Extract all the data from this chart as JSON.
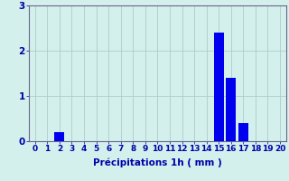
{
  "categories": [
    0,
    1,
    2,
    3,
    4,
    5,
    6,
    7,
    8,
    9,
    10,
    11,
    12,
    13,
    14,
    15,
    16,
    17,
    18,
    19,
    20
  ],
  "values": [
    0,
    0,
    0.2,
    0,
    0,
    0,
    0,
    0,
    0,
    0,
    0,
    0,
    0,
    0,
    0,
    2.4,
    1.4,
    0.4,
    0,
    0,
    0
  ],
  "bar_color": "#0000ee",
  "background_color": "#d4f0ec",
  "grid_color": "#b0ccc8",
  "xlabel": "Précipitations 1h ( mm )",
  "xlabel_color": "#0000aa",
  "ylabel_color": "#0000aa",
  "tick_color": "#0000aa",
  "axis_color": "#666688",
  "ylim": [
    0,
    3
  ],
  "yticks": [
    0,
    1,
    2,
    3
  ],
  "xlim": [
    -0.5,
    20.5
  ],
  "xlabel_fontsize": 7.5,
  "tick_fontsize": 6.5
}
